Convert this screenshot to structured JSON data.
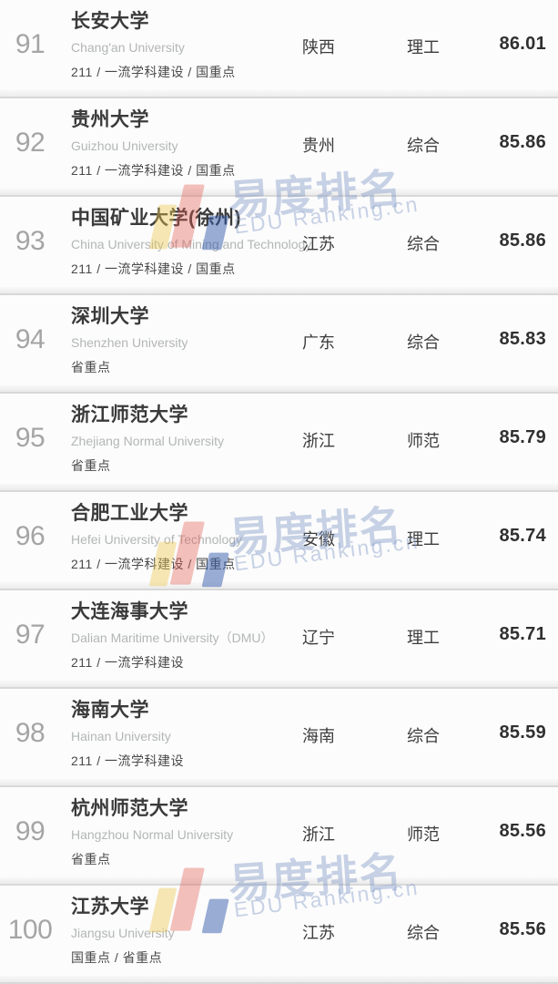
{
  "watermark": {
    "brand_cn": "易度排名",
    "brand_en": "EDU Ranking.cn",
    "logo_colors": {
      "yellow": "#ecc852",
      "red": "#e25c52",
      "blue": "#345cac"
    },
    "text_color": "#7e96c6"
  },
  "rows": [
    {
      "rank": "91",
      "name_cn": "长安大学",
      "name_en": "Chang'an University",
      "tags": "211 / 一流学科建设 / 国重点",
      "province": "陕西",
      "category": "理工",
      "score": "86.01"
    },
    {
      "rank": "92",
      "name_cn": "贵州大学",
      "name_en": "Guizhou University",
      "tags": "211 / 一流学科建设 / 国重点",
      "province": "贵州",
      "category": "综合",
      "score": "85.86"
    },
    {
      "rank": "93",
      "name_cn": "中国矿业大学(徐州)",
      "name_en": "China University of Mining and Technology",
      "tags": "211 / 一流学科建设 / 国重点",
      "province": "江苏",
      "category": "综合",
      "score": "85.86"
    },
    {
      "rank": "94",
      "name_cn": "深圳大学",
      "name_en": "Shenzhen University",
      "tags": "省重点",
      "province": "广东",
      "category": "综合",
      "score": "85.83"
    },
    {
      "rank": "95",
      "name_cn": "浙江师范大学",
      "name_en": "Zhejiang Normal University",
      "tags": "省重点",
      "province": "浙江",
      "category": "师范",
      "score": "85.79"
    },
    {
      "rank": "96",
      "name_cn": "合肥工业大学",
      "name_en": "Hefei University of Technology",
      "tags": "211 / 一流学科建设 / 国重点",
      "province": "安徽",
      "category": "理工",
      "score": "85.74"
    },
    {
      "rank": "97",
      "name_cn": "大连海事大学",
      "name_en": "Dalian Maritime University（DMU）",
      "tags": "211 / 一流学科建设",
      "province": "辽宁",
      "category": "理工",
      "score": "85.71"
    },
    {
      "rank": "98",
      "name_cn": "海南大学",
      "name_en": "Hainan University",
      "tags": "211 / 一流学科建设",
      "province": "海南",
      "category": "综合",
      "score": "85.59"
    },
    {
      "rank": "99",
      "name_cn": "杭州师范大学",
      "name_en": "Hangzhou Normal University",
      "tags": "省重点",
      "province": "浙江",
      "category": "师范",
      "score": "85.56"
    },
    {
      "rank": "100",
      "name_cn": "江苏大学",
      "name_en": "Jiangsu University",
      "tags": "国重点 / 省重点",
      "province": "江苏",
      "category": "综合",
      "score": "85.56"
    }
  ]
}
